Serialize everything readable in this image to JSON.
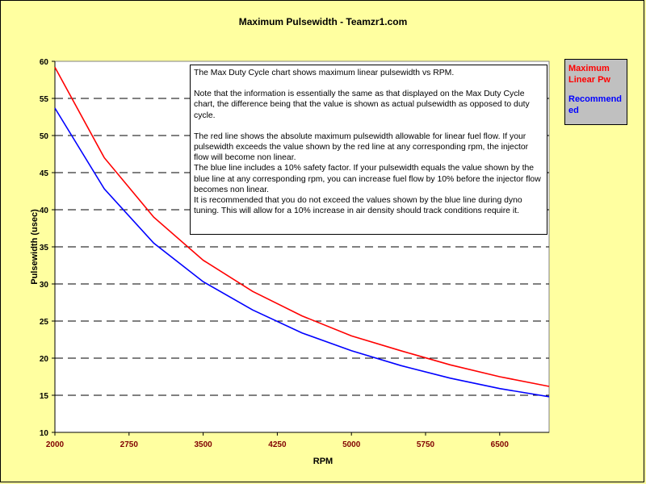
{
  "chart_data": {
    "type": "line",
    "title": "Maximum Pulsewidth - Teamzr1.com",
    "xlabel": "RPM",
    "ylabel": "Pulsewidth (usec)",
    "xlim": [
      2000,
      7000
    ],
    "ylim": [
      10,
      60
    ],
    "x_ticks": [
      2000,
      2750,
      3500,
      4250,
      5000,
      5750,
      6500
    ],
    "y_ticks": [
      10,
      15,
      20,
      25,
      30,
      35,
      40,
      45,
      50,
      55,
      60
    ],
    "grid": "horizontal-dashed",
    "legend": "right",
    "x": [
      2000,
      2500,
      3000,
      3500,
      4000,
      4500,
      5000,
      5500,
      6000,
      6500,
      7000
    ],
    "series": [
      {
        "name": "Maximum Linear Pw",
        "color": "#ff0000",
        "values": [
          59.2,
          47.0,
          39.0,
          33.2,
          29.0,
          25.7,
          23.0,
          21.0,
          19.1,
          17.5,
          16.2
        ]
      },
      {
        "name": "Recommended",
        "color": "#0000ff",
        "values": [
          53.7,
          42.8,
          35.5,
          30.3,
          26.5,
          23.4,
          21.0,
          19.0,
          17.3,
          15.9,
          14.8
        ]
      }
    ]
  },
  "legend": {
    "red_line1": "Maximum",
    "red_line2": "Linear Pw",
    "blue_line1": "Recommend",
    "blue_line2": "ed"
  },
  "note": {
    "p1": "The Max Duty Cycle chart shows maximum linear pulsewidth vs RPM.",
    "p2": "Note that the information is essentially the same as that displayed on the Max Duty Cycle chart, the difference being that the value is shown as actual pulsewidth as opposed to duty cycle.",
    "p3": "The red line shows the absolute maximum pulsewidth allowable for linear fuel flow.  If your pulsewidth exceeds the value shown by the red line at any corresponding rpm, the injector flow will become non linear.",
    "p4": "The blue line includes a 10% safety factor.  If your pulsewidth equals the value shown by the blue line at any corresponding rpm, you can increase fuel flow by 10% before the injector flow becomes non linear.",
    "p5": "It is recommended that you do not exceed the values shown by the blue line during dyno tuning.  This will allow for a 10% increase in air density should track conditions require it."
  }
}
